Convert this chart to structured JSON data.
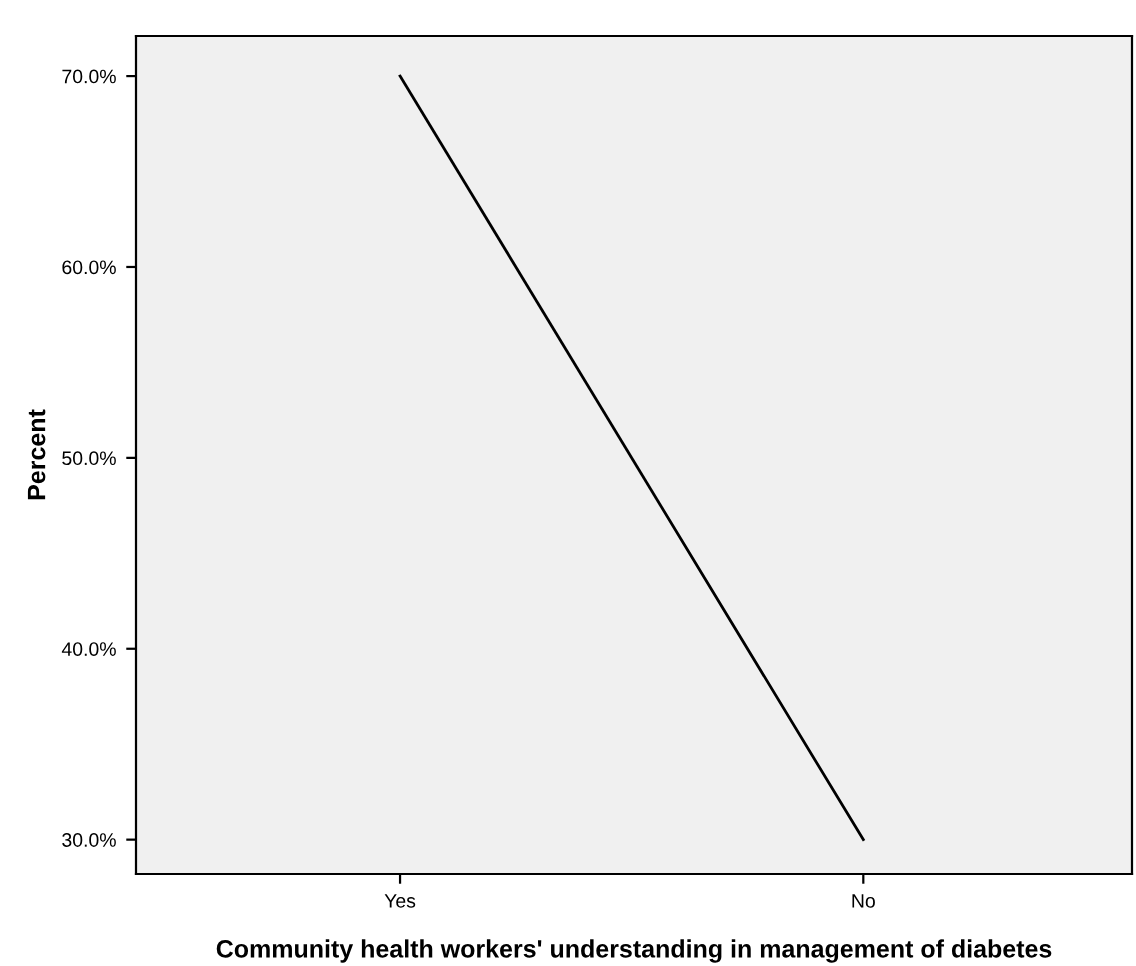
{
  "chart_data": {
    "type": "line",
    "xlabel": "Community health workers' understanding in management of diabetes",
    "ylabel": "Percent",
    "categories": [
      "Yes",
      "No"
    ],
    "series": [
      {
        "color": "#000000",
        "values": [
          70.0,
          30.0
        ]
      }
    ],
    "ylim": [
      28.2,
      72.1
    ],
    "yticks": [
      {
        "value": 30,
        "label": "30.0%"
      },
      {
        "value": 40,
        "label": "40.0%"
      },
      {
        "value": 50,
        "label": "50.0%"
      },
      {
        "value": 60,
        "label": "60.0%"
      },
      {
        "value": 70,
        "label": "70.0%"
      }
    ],
    "grid": false,
    "marker": "none",
    "line_style": "solid"
  }
}
